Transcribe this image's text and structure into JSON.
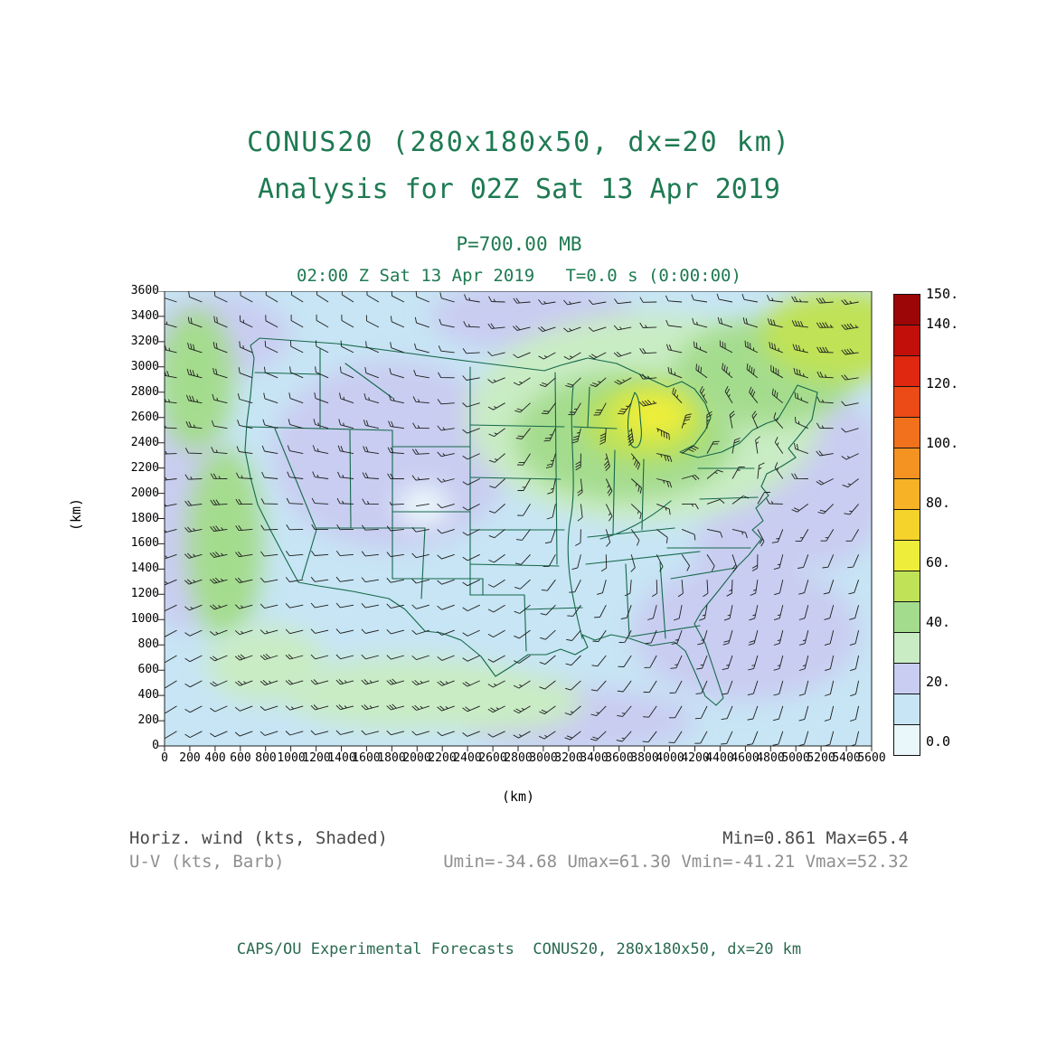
{
  "header": {
    "title_line1": "CONUS20 (280x180x50, dx=20 km)",
    "title_line2": "Analysis for 02Z Sat 13 Apr 2019",
    "pressure_label": "P=700.00 MB",
    "time_label": "02:00 Z Sat 13 Apr 2019   T=0.0 s (0:00:00)"
  },
  "axes": {
    "x_label": "(km)",
    "y_label": "(km)",
    "x_ticks": [
      0,
      200,
      400,
      600,
      800,
      1000,
      1200,
      1400,
      1600,
      1800,
      2000,
      2200,
      2400,
      2600,
      2800,
      3000,
      3200,
      3400,
      3600,
      3800,
      4000,
      4200,
      4400,
      4600,
      4800,
      5000,
      5200,
      5400,
      5600
    ],
    "y_ticks": [
      0,
      200,
      400,
      600,
      800,
      1000,
      1200,
      1400,
      1600,
      1800,
      2000,
      2200,
      2400,
      2600,
      2800,
      3000,
      3200,
      3400,
      3600
    ]
  },
  "footer": {
    "stats_left_line1": "Horiz. wind (kts, Shaded)",
    "stats_left_line2": "U-V (kts, Barb)",
    "stats_right_line1": "Min=0.861 Max=65.4",
    "stats_right_line2": "Umin=-34.68 Umax=61.30 Vmin=-41.21 Vmax=52.32",
    "credit": "CAPS/OU Experimental Forecasts  CONUS20, 280x180x50, dx=20 km"
  },
  "colors": {
    "text_green": "#1e7a52",
    "map_line": "#15684a",
    "frame": "#222222",
    "barb": "#1d1d1d",
    "background_field": "#c7e5f4"
  },
  "chart_data": {
    "type": "heatmap",
    "title": "CONUS20 (280x180x50, dx=20 km) Analysis for 02Z Sat 13 Apr 2019",
    "field_shaded": "Horiz. wind (kts, Shaded)",
    "field_vector": "U-V (kts, Barb)",
    "level": "P=700.00 MB",
    "valid_time": "02:00 Z Sat 13 Apr 2019",
    "forecast_offset": "T=0.0 s (0:00:00)",
    "xlabel": "(km)",
    "ylabel": "(km)",
    "xlim": [
      0,
      5600
    ],
    "ylim": [
      0,
      3600
    ],
    "tick_step_km": 200,
    "grid": false,
    "legend_position": "right-colorbar",
    "stats": {
      "min": 0.861,
      "max": 65.4,
      "umin": -34.68,
      "umax": 61.3,
      "vmin": -41.21,
      "vmax": 52.32
    },
    "colorbar": {
      "min": 0,
      "max": 150,
      "block_step": 10,
      "tick_values": [
        150,
        140,
        120,
        100,
        80,
        60,
        40,
        20,
        0
      ],
      "tick_labels": [
        "150.",
        "140.",
        "120.",
        "100.",
        "80.",
        "60.",
        "40.",
        "20.",
        "0.0"
      ],
      "colors": [
        "#e9f6fa",
        "#c7e5f4",
        "#c9cdf1",
        "#c9ecc4",
        "#a4dc8e",
        "#bfe257",
        "#eeee3a",
        "#f6d32b",
        "#f7b225",
        "#f59322",
        "#f2711c",
        "#ec4a16",
        "#e02710",
        "#c20f0a",
        "#9d0606"
      ]
    },
    "shaded_regions": [
      {
        "x_km": 450,
        "y_km": 3250,
        "rx_km": 550,
        "ry_km": 320,
        "value_kts": 24,
        "label": "Pacific Northwest lavender"
      },
      {
        "x_km": 150,
        "y_km": 1800,
        "rx_km": 350,
        "ry_km": 900,
        "value_kts": 22,
        "label": "offshore West Coast"
      },
      {
        "x_km": 1800,
        "y_km": 2300,
        "rx_km": 950,
        "ry_km": 750,
        "value_kts": 22,
        "label": "central Plains lavender"
      },
      {
        "x_km": 2900,
        "y_km": 3400,
        "rx_km": 800,
        "ry_km": 300,
        "value_kts": 24,
        "label": "northern border lavender"
      },
      {
        "x_km": 4600,
        "y_km": 900,
        "rx_km": 900,
        "ry_km": 550,
        "value_kts": 22,
        "label": "Southeast lavender"
      },
      {
        "x_km": 5200,
        "y_km": 2100,
        "rx_km": 550,
        "ry_km": 700,
        "value_kts": 24,
        "label": "western Atlantic lavender"
      },
      {
        "x_km": 3300,
        "y_km": 200,
        "rx_km": 900,
        "ry_km": 260,
        "value_kts": 23,
        "label": "Gulf of Mexico lavender"
      },
      {
        "x_km": 4650,
        "y_km": 1550,
        "rx_km": 450,
        "ry_km": 450,
        "value_kts": 24,
        "label": "Mid-Atlantic coast lavender"
      },
      {
        "x_km": 250,
        "y_km": 2900,
        "rx_km": 300,
        "ry_km": 560,
        "value_kts": 40,
        "label": "Pacific Northwest coast green band"
      },
      {
        "x_km": 480,
        "y_km": 1600,
        "rx_km": 300,
        "ry_km": 760,
        "value_kts": 40,
        "label": "California coast green band"
      },
      {
        "x_km": 800,
        "y_km": 650,
        "rx_km": 460,
        "ry_km": 300,
        "value_kts": 36,
        "label": "Southern California / Arizona green"
      },
      {
        "x_km": 1900,
        "y_km": 420,
        "rx_km": 950,
        "ry_km": 280,
        "value_kts": 34,
        "label": "Texas / Gulf Coast green band"
      },
      {
        "x_km": 2750,
        "y_km": 350,
        "rx_km": 560,
        "ry_km": 220,
        "value_kts": 30,
        "label": "central Gulf Coast light green"
      },
      {
        "x_km": 3800,
        "y_km": 2600,
        "rx_km": 1400,
        "ry_km": 820,
        "value_kts": 30,
        "label": "broad Midwest-Northeast light green"
      },
      {
        "x_km": 3650,
        "y_km": 2450,
        "rx_km": 880,
        "ry_km": 500,
        "value_kts": 42,
        "label": "upper Midwest - Ohio Valley green"
      },
      {
        "x_km": 4750,
        "y_km": 2950,
        "rx_km": 720,
        "ry_km": 420,
        "value_kts": 44,
        "label": "New England / St. Lawrence green"
      },
      {
        "x_km": 5350,
        "y_km": 3250,
        "rx_km": 620,
        "ry_km": 360,
        "value_kts": 50,
        "label": "far northeast corner yellow-green"
      },
      {
        "x_km": 3800,
        "y_km": 2550,
        "rx_km": 480,
        "ry_km": 300,
        "value_kts": 52,
        "label": "Great Lakes jet outer yellow-green"
      },
      {
        "x_km": 3870,
        "y_km": 2620,
        "rx_km": 290,
        "ry_km": 185,
        "value_kts": 62,
        "label": "wind max over Lower Michigan / Ohio"
      },
      {
        "x_km": 2050,
        "y_km": 1900,
        "rx_km": 210,
        "ry_km": 165,
        "value_kts": 3,
        "label": "wind minimum near Four Corners"
      }
    ],
    "notes": "700 mb horizontal wind speed shaded (kts) with U-V wind barbs; max ~65 kt (yellow) over the Great Lakes / Ohio Valley, green coastal bands along the Pacific coast and Texas-Gulf Coast; 10-25 kt light blue and lavender elsewhere."
  }
}
